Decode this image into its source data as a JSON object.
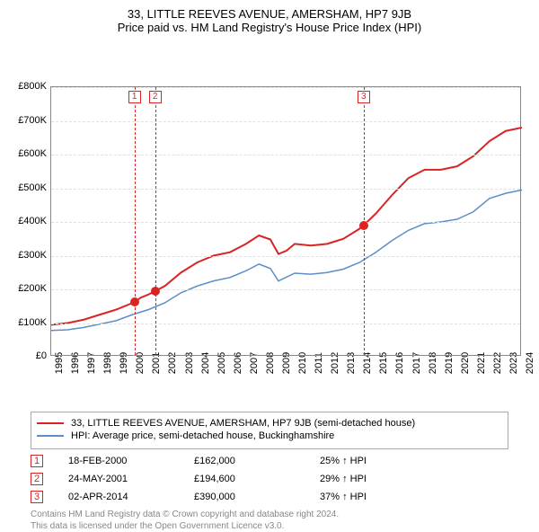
{
  "title": "33, LITTLE REEVES AVENUE, AMERSHAM, HP7 9JB",
  "subtitle": "Price paid vs. HM Land Registry's House Price Index (HPI)",
  "title_fontsize": 13,
  "chart": {
    "type": "line",
    "xlim": [
      1995,
      2024
    ],
    "ylim": [
      0,
      800000
    ],
    "ytick_step": 100000,
    "ytick_labels": [
      "£0",
      "£100K",
      "£200K",
      "£300K",
      "£400K",
      "£500K",
      "£600K",
      "£700K",
      "£800K"
    ],
    "xtick_step": 1,
    "xtick_labels": [
      "1995",
      "1996",
      "1997",
      "1998",
      "1999",
      "2000",
      "2001",
      "2002",
      "2003",
      "2004",
      "2005",
      "2006",
      "2007",
      "2008",
      "2009",
      "2010",
      "2011",
      "2012",
      "2013",
      "2014",
      "2015",
      "2016",
      "2017",
      "2018",
      "2019",
      "2020",
      "2021",
      "2022",
      "2023",
      "2024"
    ],
    "background_color": "#ffffff",
    "grid_color": "#e0e0e0",
    "series": {
      "property": {
        "label": "33, LITTLE REEVES AVENUE, AMERSHAM, HP7 9JB (semi-detached house)",
        "color": "#d92424",
        "line_width": 2,
        "data": [
          [
            1995.0,
            95000
          ],
          [
            1996.0,
            100000
          ],
          [
            1997.0,
            110000
          ],
          [
            1998.0,
            125000
          ],
          [
            1999.0,
            140000
          ],
          [
            2000.13,
            162000
          ],
          [
            2000.5,
            175000
          ],
          [
            2001.0,
            185000
          ],
          [
            2001.4,
            194600
          ],
          [
            2002.0,
            210000
          ],
          [
            2003.0,
            250000
          ],
          [
            2004.0,
            280000
          ],
          [
            2005.0,
            300000
          ],
          [
            2006.0,
            310000
          ],
          [
            2007.0,
            335000
          ],
          [
            2007.8,
            360000
          ],
          [
            2008.5,
            348000
          ],
          [
            2009.0,
            305000
          ],
          [
            2009.5,
            315000
          ],
          [
            2010.0,
            335000
          ],
          [
            2011.0,
            330000
          ],
          [
            2012.0,
            335000
          ],
          [
            2013.0,
            350000
          ],
          [
            2014.0,
            380000
          ],
          [
            2014.25,
            390000
          ],
          [
            2015.0,
            425000
          ],
          [
            2016.0,
            480000
          ],
          [
            2017.0,
            530000
          ],
          [
            2018.0,
            555000
          ],
          [
            2019.0,
            555000
          ],
          [
            2020.0,
            565000
          ],
          [
            2021.0,
            595000
          ],
          [
            2022.0,
            640000
          ],
          [
            2023.0,
            670000
          ],
          [
            2024.0,
            680000
          ]
        ]
      },
      "hpi": {
        "label": "HPI: Average price, semi-detached house, Buckinghamshire",
        "color": "#5b8fc7",
        "line_width": 1.5,
        "data": [
          [
            1995.0,
            78000
          ],
          [
            1996.0,
            80000
          ],
          [
            1997.0,
            87000
          ],
          [
            1998.0,
            97000
          ],
          [
            1999.0,
            107000
          ],
          [
            2000.0,
            125000
          ],
          [
            2001.0,
            140000
          ],
          [
            2002.0,
            160000
          ],
          [
            2003.0,
            190000
          ],
          [
            2004.0,
            210000
          ],
          [
            2005.0,
            225000
          ],
          [
            2006.0,
            235000
          ],
          [
            2007.0,
            255000
          ],
          [
            2007.8,
            275000
          ],
          [
            2008.5,
            262000
          ],
          [
            2009.0,
            225000
          ],
          [
            2010.0,
            248000
          ],
          [
            2011.0,
            245000
          ],
          [
            2012.0,
            250000
          ],
          [
            2013.0,
            260000
          ],
          [
            2014.0,
            280000
          ],
          [
            2015.0,
            310000
          ],
          [
            2016.0,
            345000
          ],
          [
            2017.0,
            375000
          ],
          [
            2018.0,
            395000
          ],
          [
            2019.0,
            400000
          ],
          [
            2020.0,
            408000
          ],
          [
            2021.0,
            430000
          ],
          [
            2022.0,
            470000
          ],
          [
            2023.0,
            485000
          ],
          [
            2024.0,
            495000
          ]
        ]
      }
    },
    "sale_markers": {
      "color": "#d92424",
      "radius": 5,
      "points": [
        {
          "index": "1",
          "year": 2000.13,
          "price": 162000
        },
        {
          "index": "2",
          "year": 2001.4,
          "price": 194600
        },
        {
          "index": "3",
          "year": 2014.25,
          "price": 390000
        }
      ]
    }
  },
  "legend": {
    "border_color": "#aaaaaa"
  },
  "sales_table": [
    {
      "index": "1",
      "date": "18-FEB-2000",
      "price": "£162,000",
      "hpi_delta": "25% ↑ HPI",
      "color": "#d92424"
    },
    {
      "index": "2",
      "date": "24-MAY-2001",
      "price": "£194,600",
      "hpi_delta": "29% ↑ HPI",
      "color": "#d92424"
    },
    {
      "index": "3",
      "date": "02-APR-2014",
      "price": "£390,000",
      "hpi_delta": "37% ↑ HPI",
      "color": "#d92424"
    }
  ],
  "footer_line1": "Contains HM Land Registry data © Crown copyright and database right 2024.",
  "footer_line2": "This data is licensed under the Open Government Licence v3.0.",
  "footer_color": "#888888"
}
